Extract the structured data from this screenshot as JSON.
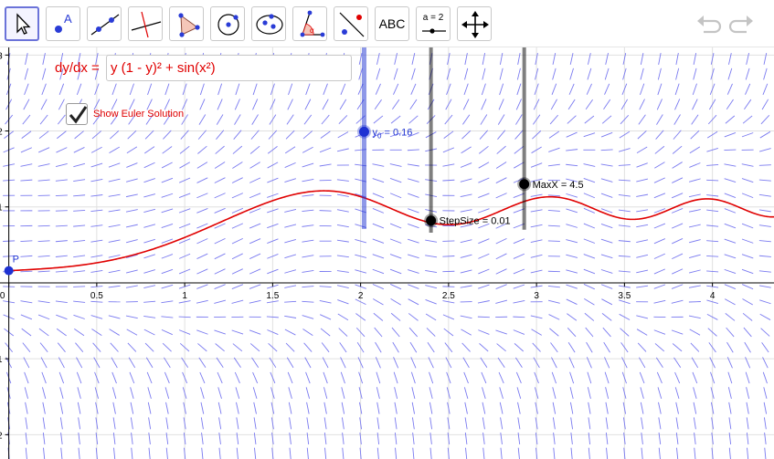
{
  "toolbar": {
    "tools": [
      {
        "name": "move-tool",
        "selected": true
      },
      {
        "name": "point-tool"
      },
      {
        "name": "line-tool"
      },
      {
        "name": "perpendicular-line-tool"
      },
      {
        "name": "polygon-tool"
      },
      {
        "name": "circle-tool"
      },
      {
        "name": "ellipse-tool"
      },
      {
        "name": "angle-tool"
      },
      {
        "name": "reflect-tool"
      },
      {
        "name": "text-tool",
        "label": "ABC"
      },
      {
        "name": "slider-tool",
        "label": "a = 2"
      },
      {
        "name": "move-graphics-view-tool"
      }
    ],
    "undo_icon": "undo-icon",
    "redo_icon": "redo-icon"
  },
  "equation": {
    "label": "dy/dx =",
    "value": "y (1 - y)² + sin(x²)"
  },
  "checkbox": {
    "label": "Show Euler Solution",
    "checked": true
  },
  "sliders": [
    {
      "label_main": "y",
      "label_sub": "0",
      "label_rest": " = 0.16",
      "value": 0.16,
      "color": "#1e32d2"
    },
    {
      "label_main": "StepSize = 0.01",
      "value": 0.01,
      "color": "#000000"
    },
    {
      "label_main": "MaxX = 4.5",
      "value": 4.5,
      "color": "#000000"
    }
  ],
  "point": {
    "label": "P",
    "x": 0,
    "y": 0.16
  },
  "axes": {
    "x_ticks": [
      "0",
      "0.5",
      "1",
      "1.5",
      "2",
      "2.5",
      "3",
      "3.5",
      "4"
    ],
    "x_tick_values": [
      0,
      0.5,
      1,
      1.5,
      2,
      2.5,
      3,
      3.5,
      4
    ],
    "y_ticks": [
      "-2",
      "-1",
      "1",
      "2",
      "3"
    ],
    "y_tick_values": [
      -2,
      -1,
      1,
      2,
      3
    ],
    "x_range": [
      -0.05,
      4.35
    ],
    "y_range": [
      -2.32,
      3.1
    ]
  },
  "colors": {
    "curve": "#e00000",
    "slope_field": "#7a7af0",
    "grid": "#e0e0e0",
    "axis": "#000000",
    "point": "#1e32d2"
  }
}
